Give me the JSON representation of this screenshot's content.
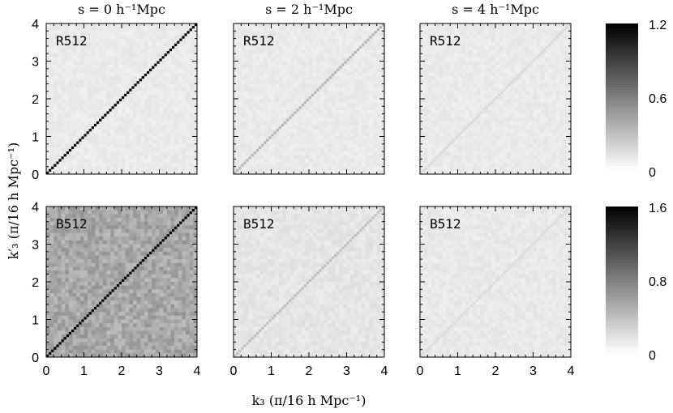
{
  "chart_data": {
    "type": "heatmap",
    "description_note": "",
    "column_titles": [
      "s = 0 h⁻¹Mpc",
      "s = 2 h⁻¹Mpc",
      "s = 4 h⁻¹Mpc"
    ],
    "xlabel": "k₃ (π/16 h Mpc⁻¹)",
    "ylabel": "k′₃ (π/16 h Mpc⁻¹)",
    "xlim": [
      0,
      4
    ],
    "ylim": [
      0,
      4
    ],
    "x_ticks": [
      "0",
      "1",
      "2",
      "3",
      "4"
    ],
    "y_ticks": [
      "0",
      "1",
      "2",
      "3",
      "4"
    ],
    "rows": [
      {
        "colorbar": {
          "min": 0,
          "max": 1.2,
          "ticks": [
            "1.2",
            "0.6",
            "0"
          ]
        },
        "panels": [
          {
            "label": "R512",
            "background_level": 0.1,
            "diagonal_level": 1.2
          },
          {
            "label": "R512",
            "background_level": 0.1,
            "diagonal_level": 0.35
          },
          {
            "label": "R512",
            "background_level": 0.1,
            "diagonal_level": 0.18
          }
        ]
      },
      {
        "colorbar": {
          "min": 0,
          "max": 1.6,
          "ticks": [
            "1.6",
            "0.8",
            "0"
          ]
        },
        "panels": [
          {
            "label": "B512",
            "background_level": 0.55,
            "diagonal_level": 1.6
          },
          {
            "label": "B512",
            "background_level": 0.16,
            "diagonal_level": 0.4
          },
          {
            "label": "B512",
            "background_level": 0.14,
            "diagonal_level": 0.22
          }
        ]
      }
    ]
  }
}
